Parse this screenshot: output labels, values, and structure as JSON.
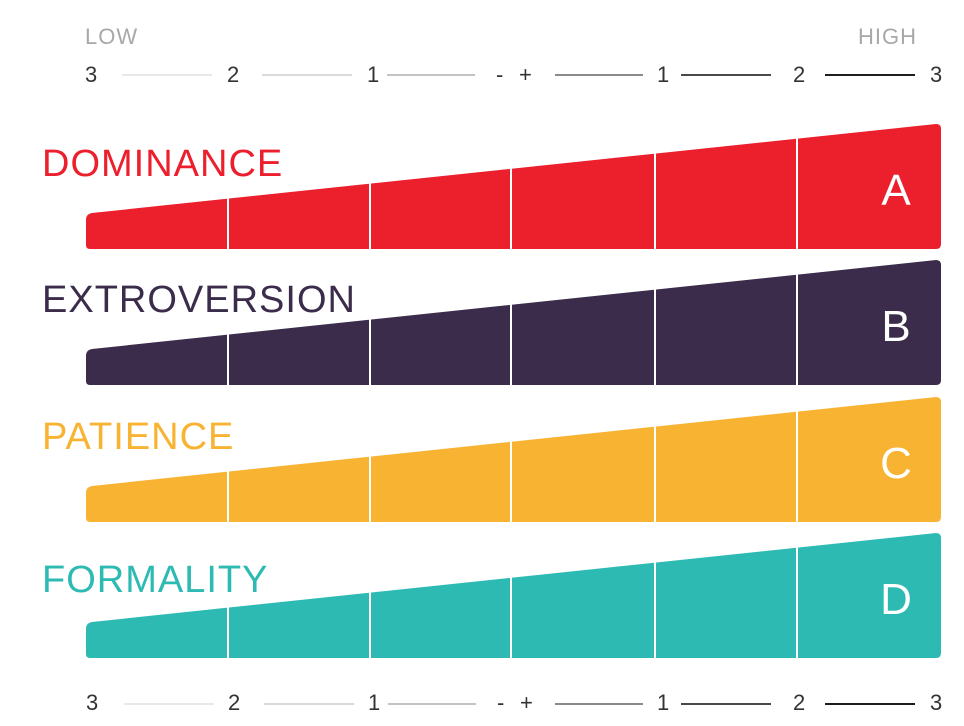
{
  "scale": {
    "low_label": "LOW",
    "high_label": "HIGH",
    "top_ticks": [
      "3",
      "2",
      "1",
      "-",
      "+",
      "1",
      "2",
      "3"
    ],
    "bottom_ticks": [
      "3",
      "2",
      "1",
      "-",
      "+",
      "1",
      "2",
      "3"
    ],
    "line_colors": [
      "#e8e8e8",
      "#dadada",
      "#c4c4c4",
      "#8a8a8a",
      "#4a4a4a",
      "#1e1e1e"
    ]
  },
  "traits": [
    {
      "name": "DOMINANCE",
      "letter": "A",
      "color": "#ec1f2d"
    },
    {
      "name": "EXTROVERSION",
      "letter": "B",
      "color": "#3b2c4b"
    },
    {
      "name": "PATIENCE",
      "letter": "C",
      "color": "#f8b333"
    },
    {
      "name": "FORMALITY",
      "letter": "D",
      "color": "#2cbab3"
    }
  ]
}
